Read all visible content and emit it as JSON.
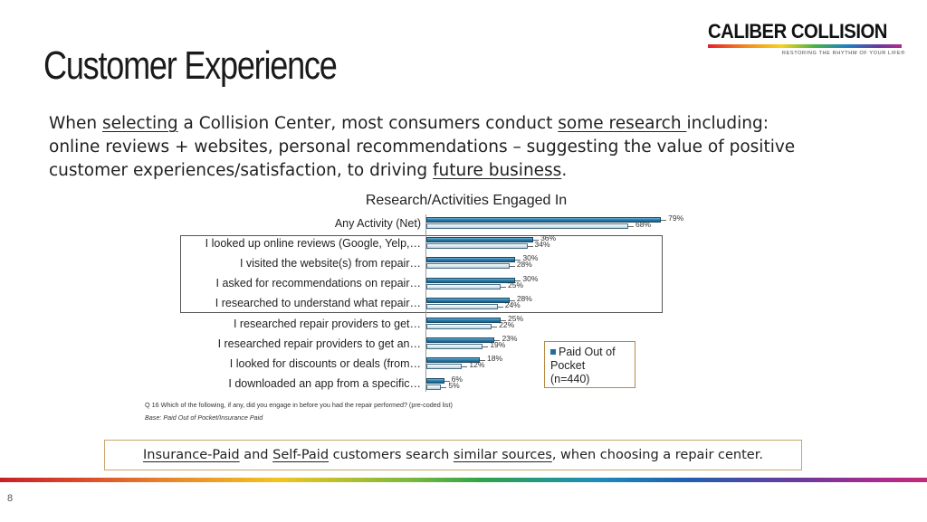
{
  "slide": {
    "title": "Customer Experience",
    "page_number": "8"
  },
  "logo": {
    "name": "CALIBER COLLISION",
    "tagline": "RESTORING THE RHYTHM OF YOUR LIFE®"
  },
  "intro": {
    "l1_a": "When ",
    "l1_b": "selecting",
    "l1_c": " a Collision Center, most consumers conduct ",
    "l1_d": "some research ",
    "l1_e": "including:",
    "l2": "online reviews + websites, personal recommendations – suggesting the value of positive",
    "l3_a": "customer experiences/satisfaction, to driving ",
    "l3_b": "future business",
    "l3_c": "."
  },
  "chart_data": {
    "type": "bar",
    "orientation": "horizontal",
    "title": "Research/Activities Engaged In",
    "categories": [
      "Any Activity (Net)",
      "I looked up online reviews (Google, Yelp,…",
      "I visited the website(s) from repair…",
      "I asked for recommendations on repair…",
      "I researched to understand what repair…",
      "I researched repair providers to get…",
      "I researched repair providers to get an…",
      "I looked for discounts or deals (from…",
      "I downloaded an app from a specific…"
    ],
    "series": [
      {
        "name": "Paid Out of Pocket (n=440)",
        "values": [
          79,
          36,
          30,
          30,
          28,
          25,
          23,
          18,
          6
        ],
        "color": "#1f6f9c"
      },
      {
        "values": [
          68,
          34,
          28,
          25,
          24,
          22,
          19,
          12,
          5
        ],
        "color": "#d6e6f0"
      }
    ],
    "value_suffix": "%",
    "xlim": [
      0,
      100
    ],
    "legend": {
      "line1": "Paid Out of",
      "line2": "Pocket",
      "line3": "(n=440)",
      "placement": "right"
    },
    "highlighted_categories": [
      1,
      2,
      3,
      4
    ]
  },
  "notes": {
    "question": "Q 16 Which of the following, if any, did you engage in before you had the repair performed? (pre-coded list)",
    "base": "Base:  Paid Out of Pocket/Insurance Paid"
  },
  "callout": {
    "a": "Insurance-Paid",
    "b": " and ",
    "c": "Self-Paid",
    "d": " customers search ",
    "e": "similar sources",
    "f": ", when choosing a repair center."
  }
}
